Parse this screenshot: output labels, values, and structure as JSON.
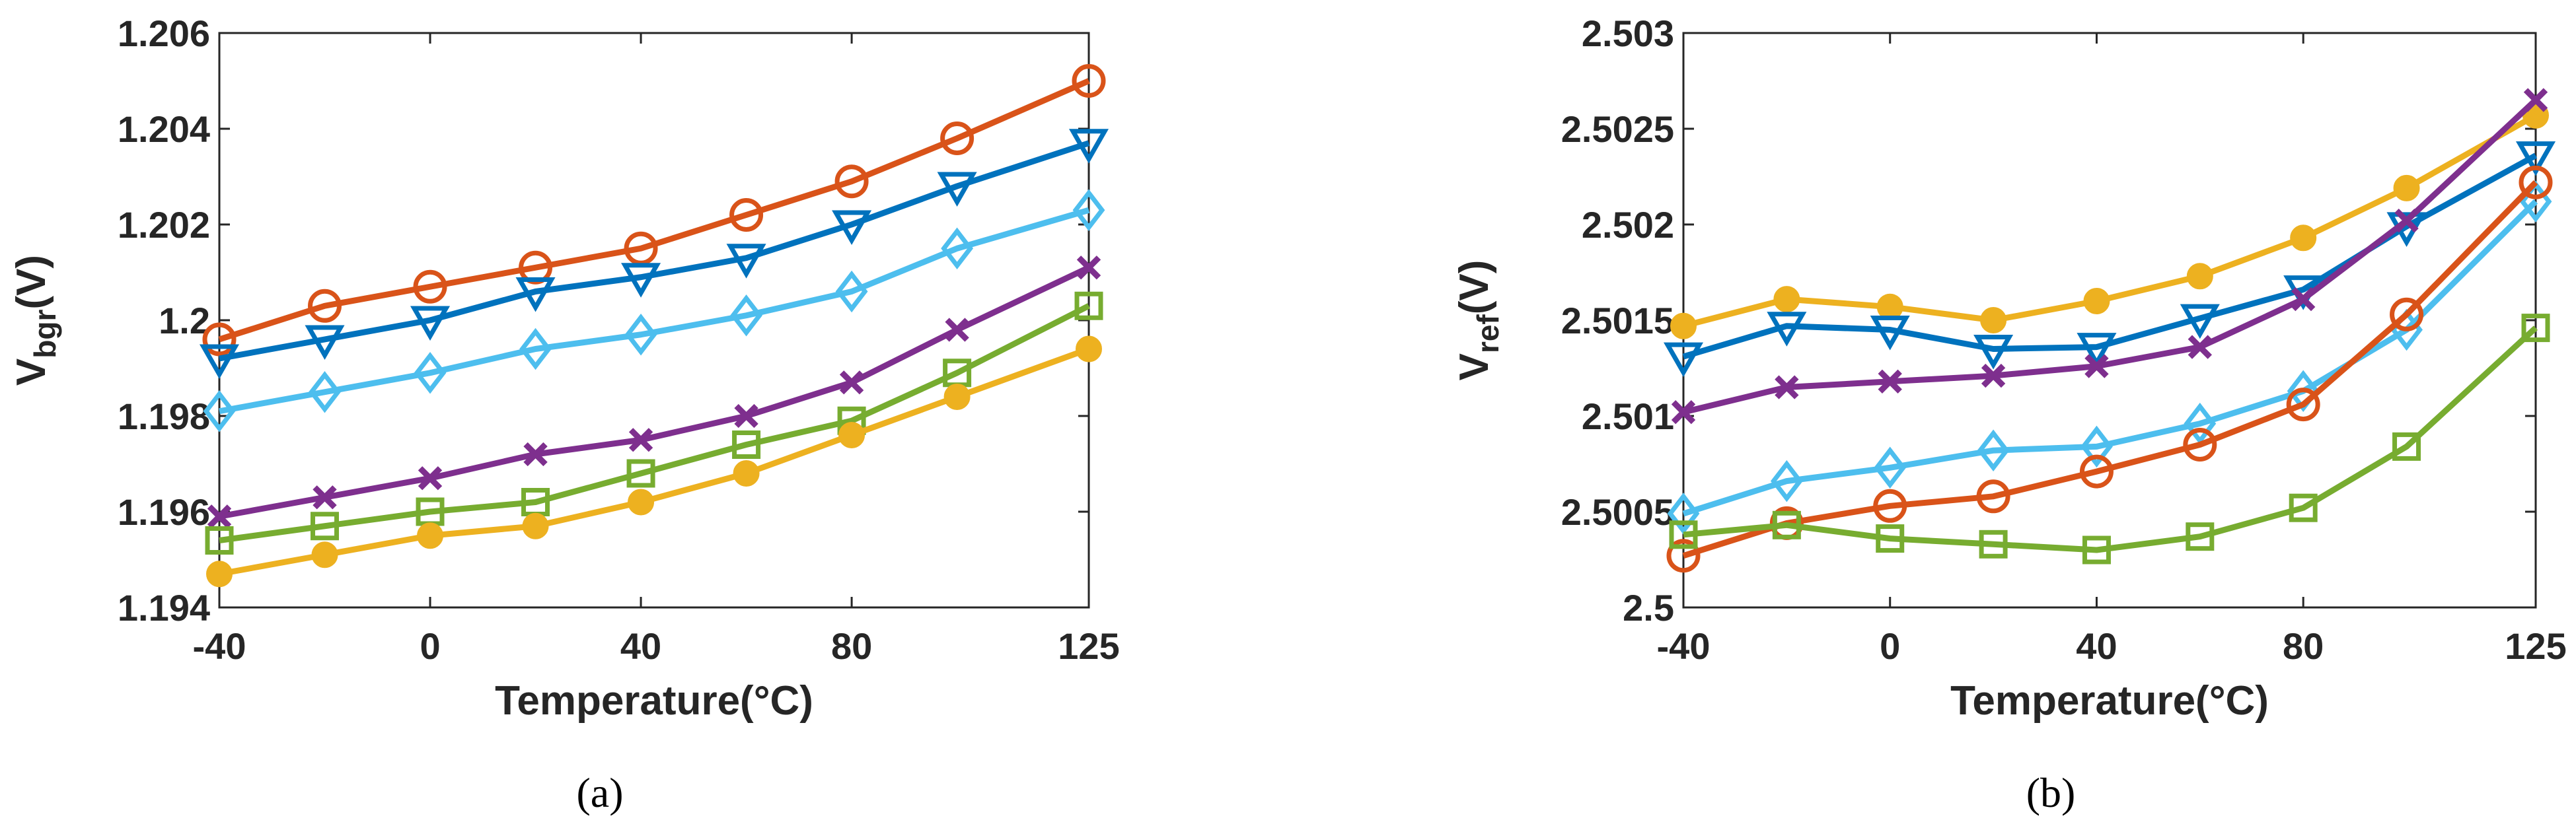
{
  "chart_data": [
    {
      "type": "line",
      "caption": "(a)",
      "xlabel": "Temperature(°C)",
      "ylabel_main": "V",
      "ylabel_sub": "bgr",
      "ylabel_suffix": "(V)",
      "x": [
        -40,
        -20,
        0,
        20,
        40,
        60,
        80,
        100,
        125
      ],
      "xticks": [
        -40,
        0,
        40,
        80,
        125
      ],
      "xtick_labels": [
        "-40",
        "0",
        "40",
        "80",
        "125"
      ],
      "xlim": [
        -40,
        125
      ],
      "ylim": [
        1.194,
        1.206
      ],
      "yticks": [
        1.194,
        1.196,
        1.198,
        1.2,
        1.202,
        1.204,
        1.206
      ],
      "ytick_labels": [
        "1.194",
        "1.196",
        "1.198",
        "1.2",
        "1.202",
        "1.204",
        "1.206"
      ],
      "grid": false,
      "series": [
        {
          "color": "#D95319",
          "marker": "circle",
          "values": [
            1.1996,
            1.2003,
            1.2007,
            1.2011,
            1.2015,
            1.2022,
            1.2029,
            1.2038,
            1.205
          ]
        },
        {
          "color": "#0072BD",
          "marker": "triangle-down",
          "values": [
            1.1992,
            1.1996,
            1.2,
            1.2006,
            1.2009,
            1.2013,
            1.202,
            1.2028,
            1.2037
          ]
        },
        {
          "color": "#4DBEEE",
          "marker": "diamond",
          "values": [
            1.1981,
            1.1985,
            1.1989,
            1.1994,
            1.1997,
            1.2001,
            1.2006,
            1.2015,
            1.2023
          ]
        },
        {
          "color": "#7E2F8E",
          "marker": "x",
          "values": [
            1.1959,
            1.1963,
            1.1967,
            1.1972,
            1.1975,
            1.198,
            1.1987,
            1.1998,
            1.2011
          ]
        },
        {
          "color": "#77AC30",
          "marker": "square",
          "values": [
            1.1954,
            1.1957,
            1.196,
            1.1962,
            1.1968,
            1.1974,
            1.1979,
            1.1989,
            1.2003
          ]
        },
        {
          "color": "#EDB120",
          "marker": "filled-circle",
          "values": [
            1.1947,
            1.1951,
            1.1955,
            1.1957,
            1.1962,
            1.1968,
            1.1976,
            1.1984,
            1.1994
          ]
        }
      ]
    },
    {
      "type": "line",
      "caption": "(b)",
      "xlabel": "Temperature(°C)",
      "ylabel_main": "V",
      "ylabel_sub": "ref",
      "ylabel_suffix": "(V)",
      "x": [
        -40,
        -20,
        0,
        20,
        40,
        60,
        80,
        100,
        125
      ],
      "xticks": [
        -40,
        0,
        40,
        80,
        125
      ],
      "xtick_labels": [
        "-40",
        "0",
        "40",
        "80",
        "125"
      ],
      "xlim": [
        -40,
        125
      ],
      "ylim": [
        2.5,
        2.503
      ],
      "yticks": [
        2.5,
        2.5005,
        2.501,
        2.5015,
        2.502,
        2.5025,
        2.503
      ],
      "ytick_labels": [
        "2.5",
        "2.5005",
        "2.501",
        "2.5015",
        "2.502",
        "2.5025",
        "2.503"
      ],
      "grid": false,
      "series": [
        {
          "color": "#EDB120",
          "marker": "filled-circle",
          "values": [
            2.50147,
            2.50161,
            2.50157,
            2.5015,
            2.5016,
            2.50173,
            2.50193,
            2.50219,
            2.50257
          ]
        },
        {
          "color": "#0072BD",
          "marker": "triangle-down",
          "values": [
            2.50131,
            2.50147,
            2.50145,
            2.50135,
            2.50136,
            2.50151,
            2.50166,
            2.50199,
            2.50236
          ]
        },
        {
          "color": "#7E2F8E",
          "marker": "x",
          "values": [
            2.50102,
            2.50115,
            2.50118,
            2.50121,
            2.50126,
            2.50136,
            2.50161,
            2.50202,
            2.50265
          ]
        },
        {
          "color": "#4DBEEE",
          "marker": "diamond",
          "values": [
            2.50049,
            2.50066,
            2.50073,
            2.50082,
            2.50084,
            2.50096,
            2.50113,
            2.50145,
            2.50212
          ]
        },
        {
          "color": "#D95319",
          "marker": "circle",
          "values": [
            2.50027,
            2.50044,
            2.50053,
            2.50058,
            2.50071,
            2.50085,
            2.50106,
            2.50153,
            2.50222
          ]
        },
        {
          "color": "#77AC30",
          "marker": "square",
          "values": [
            2.50038,
            2.50043,
            2.50036,
            2.50033,
            2.5003,
            2.50037,
            2.50052,
            2.50084,
            2.50146
          ]
        }
      ]
    }
  ]
}
